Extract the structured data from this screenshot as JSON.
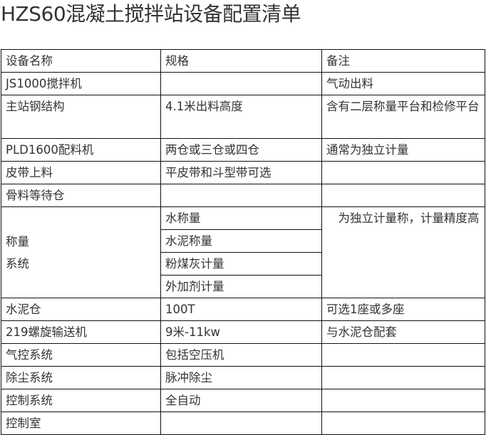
{
  "title": "HZS60混凝土搅拌站设备配置清单",
  "header": [
    "设备名称",
    "规格",
    "备注"
  ],
  "rows": {
    "r1": [
      "JS1000搅拌机",
      "",
      "气动出料"
    ],
    "r2": [
      "主站钢结构",
      "4.1米出料高度",
      "含有二层称量平台和检修平台"
    ],
    "r3": [
      "PLD1600配料机",
      "两仓或三仓或四仓",
      "通常为独立计量"
    ],
    "r4": [
      "皮带上料",
      "平皮带和斗型带可选",
      ""
    ],
    "r5": [
      "骨料等待仓",
      "",
      ""
    ],
    "weigh": {
      "name": "称量\n系统",
      "specs": [
        "水称量",
        "水泥称量",
        "粉煤灰计量",
        "外加剂计量"
      ],
      "note": "　为独立计量称，计量精度高"
    },
    "r6": [
      "水泥仓",
      "100T",
      "可选1座或多座"
    ],
    "r7": [
      "219螺旋输送机",
      "9米-11kw",
      "与水泥仓配套"
    ],
    "r8": [
      "气控系统",
      "包括空压机",
      ""
    ],
    "r9": [
      "除尘系统",
      "脉冲除尘",
      ""
    ],
    "r10": [
      "控制系统",
      "全自动",
      ""
    ],
    "r11": [
      "控制室",
      "",
      ""
    ]
  }
}
